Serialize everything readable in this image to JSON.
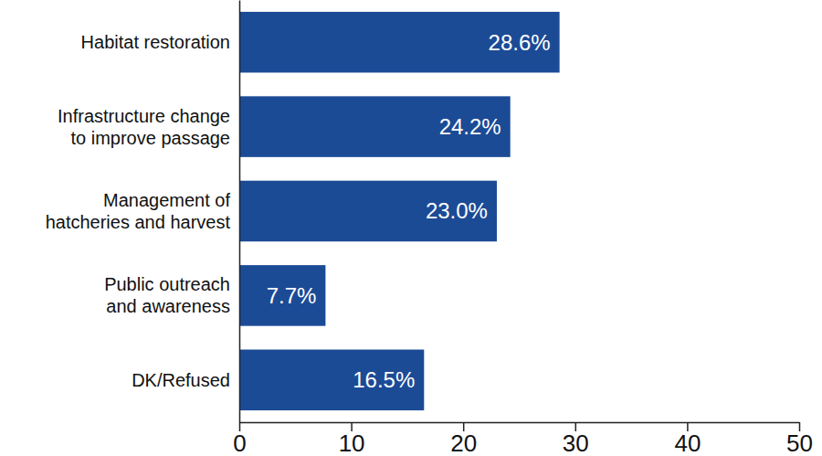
{
  "chart_data": {
    "type": "bar",
    "orientation": "horizontal",
    "categories": [
      "Habitat restoration",
      "Infrastructure change\nto improve passage",
      "Management of\nhatcheries and harvest",
      "Public outreach\nand awareness",
      "DK/Refused"
    ],
    "values": [
      28.6,
      24.2,
      23.0,
      7.7,
      16.5
    ],
    "value_labels": [
      "28.6%",
      "24.2%",
      "23.0%",
      "7.7%",
      "16.5%"
    ],
    "data_labels": true,
    "color": "#1c4b96",
    "xlim": [
      0,
      50
    ],
    "xticks": [
      0,
      10,
      20,
      30,
      40,
      50
    ],
    "grid": false
  }
}
